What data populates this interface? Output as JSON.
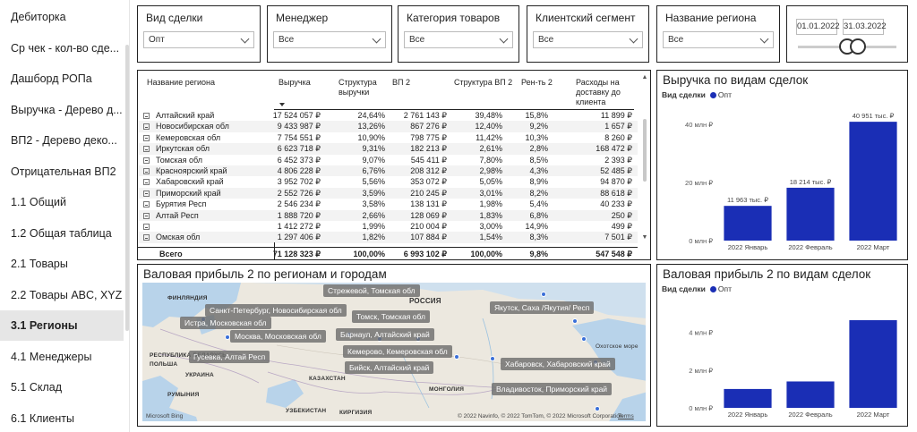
{
  "sidebar": {
    "items": [
      {
        "label": "Дебиторка"
      },
      {
        "label": "Ср чек - кол-во сде..."
      },
      {
        "label": "Дашборд РОПа"
      },
      {
        "label": "Выручка - Дерево д..."
      },
      {
        "label": "ВП2 - Дерево деко..."
      },
      {
        "label": "Отрицательная ВП2"
      },
      {
        "label": "1.1 Общий"
      },
      {
        "label": "1.2 Общая таблица"
      },
      {
        "label": "2.1 Товары"
      },
      {
        "label": "2.2 Товары ABC, XYZ"
      },
      {
        "label": "3.1 Регионы"
      },
      {
        "label": "4.1 Менеджеры"
      },
      {
        "label": "5.1 Склад"
      },
      {
        "label": "6.1 Клиенты"
      }
    ],
    "active_index": 10
  },
  "filters": [
    {
      "title": "Вид сделки",
      "value": "Опт"
    },
    {
      "title": "Менеджер",
      "value": "Все"
    },
    {
      "title": "Категория товаров",
      "value": "Все"
    },
    {
      "title": "Клиентский сегмент",
      "value": "Все"
    },
    {
      "title": "Название региона",
      "value": "Все"
    }
  ],
  "date_range": {
    "start": "01.01.2022",
    "end": "31.03.2022"
  },
  "table": {
    "headers": [
      "Название региона",
      "Выручка",
      "Структура выручки",
      "ВП 2",
      "Структура ВП 2",
      "Рен-ть 2",
      "Расходы на доставку до клиента"
    ],
    "rows": [
      [
        "Алтайский край",
        "17 524 057 ₽",
        "24,64%",
        "2 761 143 ₽",
        "39,48%",
        "15,8%",
        "11 899 ₽"
      ],
      [
        "Новосибирская обл",
        "9 433 987 ₽",
        "13,26%",
        "867 276 ₽",
        "12,40%",
        "9,2%",
        "1 657 ₽"
      ],
      [
        "Кемеровская обл",
        "7 754 551 ₽",
        "10,90%",
        "798 775 ₽",
        "11,42%",
        "10,3%",
        "8 260 ₽"
      ],
      [
        "Иркутская обл",
        "6 623 718 ₽",
        "9,31%",
        "182 213 ₽",
        "2,61%",
        "2,8%",
        "168 472 ₽"
      ],
      [
        "Томская обл",
        "6 452 373 ₽",
        "9,07%",
        "545 411 ₽",
        "7,80%",
        "8,5%",
        "2 393 ₽"
      ],
      [
        "Красноярский край",
        "4 806 228 ₽",
        "6,76%",
        "208 312 ₽",
        "2,98%",
        "4,3%",
        "52 485 ₽"
      ],
      [
        "Хабаровский край",
        "3 952 702 ₽",
        "5,56%",
        "353 072 ₽",
        "5,05%",
        "8,9%",
        "94 870 ₽"
      ],
      [
        "Приморский край",
        "2 552 726 ₽",
        "3,59%",
        "210 245 ₽",
        "3,01%",
        "8,2%",
        "88 618 ₽"
      ],
      [
        "Бурятия Респ",
        "2 546 234 ₽",
        "3,58%",
        "138 131 ₽",
        "1,98%",
        "5,4%",
        "40 233 ₽"
      ],
      [
        "Алтай Респ",
        "1 888 720 ₽",
        "2,66%",
        "128 069 ₽",
        "1,83%",
        "6,8%",
        "250 ₽"
      ],
      [
        "",
        "1 412 272 ₽",
        "1,99%",
        "210 004 ₽",
        "3,00%",
        "14,9%",
        "499 ₽"
      ],
      [
        "Омская обл",
        "1 297 406 ₽",
        "1,82%",
        "107 884 ₽",
        "1,54%",
        "8,3%",
        "7 501 ₽"
      ]
    ],
    "total": [
      "Всего",
      "71 128 323 ₽",
      "100,00%",
      "6 993 102 ₽",
      "100,00%",
      "9,8%",
      "547 548 ₽"
    ]
  },
  "map": {
    "title": "Валовая прибыль 2 по регионам и городам",
    "labels": [
      "Стрежевой, Томская обл",
      "Санкт-Петербург, Новосибирская обл",
      "Томск, Томская обл",
      "Истра, Московская обл",
      "Якутск, Саха /Якутия/ Респ",
      "Москва, Московская обл",
      "Барнаул, Алтайский край",
      "Кемерово, Кемеровская обл",
      "Гусевка, Алтай Респ",
      "Хабаровск, Хабаровский край",
      "Бийск, Алтайский край",
      "Владивосток, Приморский край"
    ],
    "countries": [
      "ФИНЛЯНДИЯ",
      "РОССИЯ",
      "РЕСПУБЛИКА БЕЛАРУСЬ",
      "ПОЛЬША",
      "УКРАИНА",
      "РУМЫНИЯ",
      "КАЗАХСТАН",
      "МОНГОЛИЯ",
      "УЗБЕКИСТАН",
      "КИРГИЗИЯ",
      "Охотское море"
    ],
    "attribution": "© 2022 Navinfo, © 2022 TomTom, © 2022 Microsoft Corporation",
    "terms": "Terms",
    "provider": "Microsoft Bing"
  },
  "chart_data": [
    {
      "type": "bar",
      "title": "Выручка по видам сделок",
      "legend_title": "Вид сделки",
      "categories": [
        "2022 Январь",
        "2022 Февраль",
        "2022 Март"
      ],
      "series": [
        {
          "name": "Опт",
          "values": [
            11963,
            18214,
            40951
          ]
        }
      ],
      "data_labels": [
        "11 963 тыс. ₽",
        "18 214 тыс. ₽",
        "40 951 тыс. ₽"
      ],
      "yticks": [
        "0 млн ₽",
        "20 млн ₽",
        "40 млн ₽"
      ],
      "ylim": [
        0,
        45000
      ],
      "color": "#1a2eb5"
    },
    {
      "type": "bar",
      "title": "Валовая прибыль 2 по видам сделок",
      "legend_title": "Вид сделки",
      "categories": [
        "2022 Январь",
        "2022 Февраль",
        "2022 Март"
      ],
      "series": [
        {
          "name": "Опт",
          "values": [
            1000,
            1400,
            4650
          ]
        }
      ],
      "yticks": [
        "0 млн ₽",
        "2 млн ₽",
        "4 млн ₽"
      ],
      "ylim": [
        0,
        5500
      ],
      "color": "#1a2eb5"
    }
  ]
}
